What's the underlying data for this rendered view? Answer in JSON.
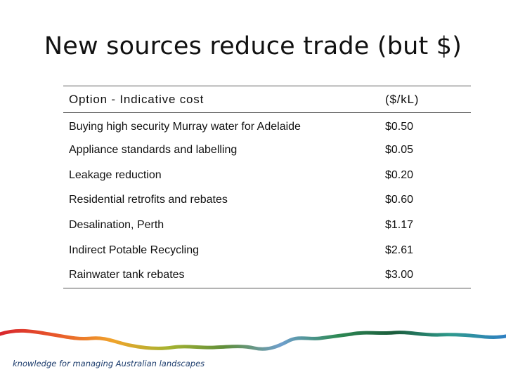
{
  "slide": {
    "title": "New sources reduce trade (but $)",
    "tagline": "knowledge for managing Australian landscapes"
  },
  "table": {
    "header": {
      "option": "Option - Indicative cost",
      "cost": "($/kL)"
    },
    "rows": [
      {
        "option": "Buying high security Murray water for Adelaide",
        "cost": "$0.50"
      },
      {
        "option": "Appliance standards and labelling",
        "cost": "$0.05"
      },
      {
        "option": "Leakage reduction",
        "cost": "$0.20"
      },
      {
        "option": "Residential retrofits and rebates",
        "cost": "$0.60"
      },
      {
        "option": "Desalination, Perth",
        "cost": "$1.17"
      },
      {
        "option": "Indirect Potable Recycling",
        "cost": "$2.61"
      },
      {
        "option": "Rainwater tank rebates",
        "cost": "$3.00"
      }
    ]
  },
  "colors": {
    "river_gradient": [
      "#d8262c",
      "#e8582a",
      "#f0a32b",
      "#a6b330",
      "#5f8e3a",
      "#6f9fcd",
      "#2e8a55",
      "#1a5b3b",
      "#2f9a8c",
      "#2e7fc3"
    ],
    "tagline": "#1d3d6d"
  }
}
